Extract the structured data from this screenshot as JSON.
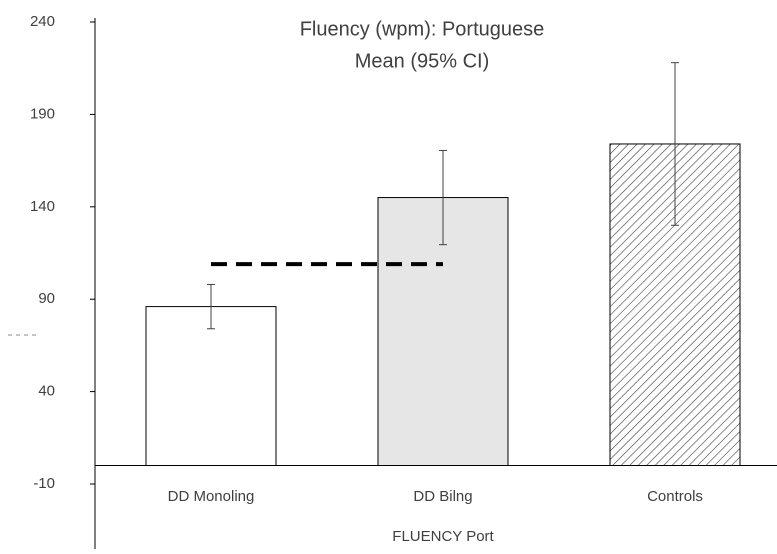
{
  "chart_data": {
    "type": "bar",
    "title": "Fluency (wpm): Portuguese",
    "subtitle": "Mean (95% CI)",
    "x_label": "FLUENCY Port",
    "categories": [
      "DD Monoling",
      "DD Bilng",
      "Controls"
    ],
    "values": [
      86,
      145,
      174
    ],
    "errors": [
      12,
      25.5,
      44
    ],
    "colors": [
      "#ffffff",
      "#e6e6e6",
      "#ffffff"
    ],
    "hatch": [
      false,
      false,
      true
    ],
    "reference_line": 109,
    "ylim": [
      -10,
      240
    ],
    "yticks": [
      -10,
      40,
      90,
      140,
      190,
      240
    ],
    "grid": false
  }
}
